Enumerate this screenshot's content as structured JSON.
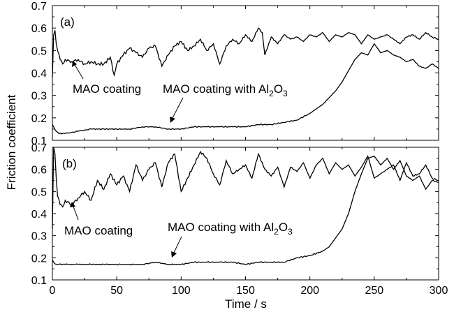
{
  "chart_data": [
    {
      "type": "line",
      "panel_label": "(a)",
      "x_range": [
        0,
        300
      ],
      "ylim": [
        0.1,
        0.7
      ],
      "yticks": [
        "0.1",
        "0.2",
        "0.3",
        "0.4",
        "0.5",
        "0.6",
        "0.7"
      ],
      "xticks": [
        "0",
        "50",
        "100",
        "150",
        "200",
        "250",
        "300"
      ],
      "annotations": [
        {
          "text": "MAO coating"
        },
        {
          "text": "MAO coating with Al",
          "sub": "2",
          "text2": "O",
          "sub2": "3"
        }
      ],
      "series": [
        {
          "name": "MAO coating",
          "x": [
            0,
            1,
            2,
            3,
            4,
            6,
            8,
            10,
            15,
            20,
            25,
            30,
            35,
            40,
            45,
            48,
            50,
            55,
            60,
            65,
            70,
            75,
            80,
            85,
            90,
            95,
            100,
            105,
            110,
            115,
            120,
            125,
            130,
            135,
            140,
            145,
            150,
            155,
            160,
            163,
            165,
            170,
            175,
            180,
            185,
            190,
            195,
            200,
            205,
            210,
            215,
            220,
            225,
            230,
            235,
            240,
            245,
            250,
            255,
            260,
            265,
            270,
            275,
            280,
            285,
            290,
            295,
            300
          ],
          "y": [
            0.38,
            0.57,
            0.59,
            0.53,
            0.5,
            0.46,
            0.44,
            0.46,
            0.45,
            0.46,
            0.44,
            0.45,
            0.44,
            0.44,
            0.47,
            0.39,
            0.44,
            0.48,
            0.51,
            0.49,
            0.47,
            0.51,
            0.52,
            0.43,
            0.48,
            0.52,
            0.54,
            0.5,
            0.52,
            0.55,
            0.5,
            0.53,
            0.44,
            0.52,
            0.55,
            0.53,
            0.57,
            0.54,
            0.6,
            0.58,
            0.48,
            0.56,
            0.53,
            0.57,
            0.55,
            0.56,
            0.54,
            0.57,
            0.56,
            0.58,
            0.54,
            0.57,
            0.56,
            0.58,
            0.57,
            0.53,
            0.57,
            0.55,
            0.56,
            0.57,
            0.55,
            0.53,
            0.56,
            0.57,
            0.55,
            0.58,
            0.56,
            0.55
          ]
        },
        {
          "name": "MAO coating with Al2O3",
          "x": [
            0,
            1,
            3,
            5,
            10,
            20,
            30,
            40,
            50,
            60,
            70,
            80,
            90,
            100,
            110,
            120,
            130,
            140,
            150,
            160,
            170,
            180,
            190,
            200,
            205,
            210,
            215,
            220,
            225,
            230,
            235,
            240,
            245,
            250,
            255,
            260,
            265,
            270,
            275,
            280,
            285,
            290,
            295,
            300
          ],
          "y": [
            0.17,
            0.16,
            0.14,
            0.13,
            0.13,
            0.14,
            0.15,
            0.15,
            0.15,
            0.15,
            0.16,
            0.16,
            0.15,
            0.15,
            0.16,
            0.16,
            0.16,
            0.16,
            0.16,
            0.17,
            0.17,
            0.18,
            0.19,
            0.22,
            0.24,
            0.26,
            0.29,
            0.32,
            0.36,
            0.41,
            0.46,
            0.49,
            0.48,
            0.53,
            0.49,
            0.5,
            0.48,
            0.47,
            0.45,
            0.46,
            0.43,
            0.42,
            0.44,
            0.42
          ]
        }
      ]
    },
    {
      "type": "line",
      "panel_label": "(b)",
      "x_range": [
        0,
        300
      ],
      "ylim": [
        0.1,
        0.7
      ],
      "yticks": [
        "0.1",
        "0.2",
        "0.3",
        "0.4",
        "0.5",
        "0.6",
        "0.7"
      ],
      "xticks": [
        "0",
        "50",
        "100",
        "150",
        "200",
        "250",
        "300"
      ],
      "xlabel": "Time / s",
      "annotations": [
        {
          "text": "MAO coating"
        },
        {
          "text": "MAO coating with Al",
          "sub": "2",
          "text2": "O",
          "sub2": "3"
        }
      ],
      "series": [
        {
          "name": "MAO coating",
          "x": [
            0,
            1,
            2,
            3,
            4,
            6,
            8,
            10,
            15,
            20,
            25,
            30,
            35,
            40,
            45,
            50,
            55,
            60,
            65,
            70,
            75,
            80,
            85,
            90,
            95,
            100,
            105,
            110,
            115,
            120,
            125,
            130,
            135,
            140,
            145,
            150,
            155,
            160,
            165,
            170,
            175,
            180,
            185,
            190,
            195,
            200,
            205,
            210,
            215,
            220,
            225,
            230,
            235,
            240,
            245,
            250,
            255,
            260,
            265,
            270,
            275,
            280,
            285,
            290,
            295,
            300
          ],
          "y": [
            0.33,
            0.7,
            0.67,
            0.56,
            0.48,
            0.44,
            0.43,
            0.46,
            0.44,
            0.47,
            0.5,
            0.46,
            0.55,
            0.51,
            0.58,
            0.53,
            0.57,
            0.5,
            0.62,
            0.55,
            0.6,
            0.63,
            0.52,
            0.63,
            0.67,
            0.5,
            0.56,
            0.62,
            0.68,
            0.65,
            0.58,
            0.53,
            0.64,
            0.58,
            0.6,
            0.62,
            0.56,
            0.67,
            0.6,
            0.57,
            0.61,
            0.52,
            0.61,
            0.59,
            0.63,
            0.56,
            0.62,
            0.65,
            0.58,
            0.63,
            0.6,
            0.62,
            0.57,
            0.61,
            0.66,
            0.56,
            0.58,
            0.6,
            0.62,
            0.55,
            0.63,
            0.57,
            0.58,
            0.62,
            0.56,
            0.55
          ]
        },
        {
          "name": "MAO coating with Al2O3",
          "x": [
            0,
            1,
            3,
            5,
            10,
            20,
            30,
            40,
            50,
            60,
            70,
            80,
            90,
            100,
            110,
            120,
            130,
            140,
            150,
            160,
            170,
            180,
            190,
            200,
            210,
            215,
            220,
            225,
            230,
            235,
            240,
            245,
            250,
            255,
            260,
            265,
            270,
            275,
            280,
            285,
            290,
            295,
            300
          ],
          "y": [
            0.19,
            0.18,
            0.17,
            0.17,
            0.17,
            0.17,
            0.17,
            0.17,
            0.17,
            0.17,
            0.17,
            0.18,
            0.17,
            0.17,
            0.18,
            0.18,
            0.18,
            0.18,
            0.17,
            0.18,
            0.18,
            0.18,
            0.2,
            0.21,
            0.23,
            0.25,
            0.29,
            0.33,
            0.4,
            0.5,
            0.58,
            0.65,
            0.66,
            0.62,
            0.65,
            0.6,
            0.64,
            0.57,
            0.55,
            0.57,
            0.51,
            0.55,
            0.54
          ]
        }
      ]
    }
  ],
  "ylabel": "Friction coefficient"
}
